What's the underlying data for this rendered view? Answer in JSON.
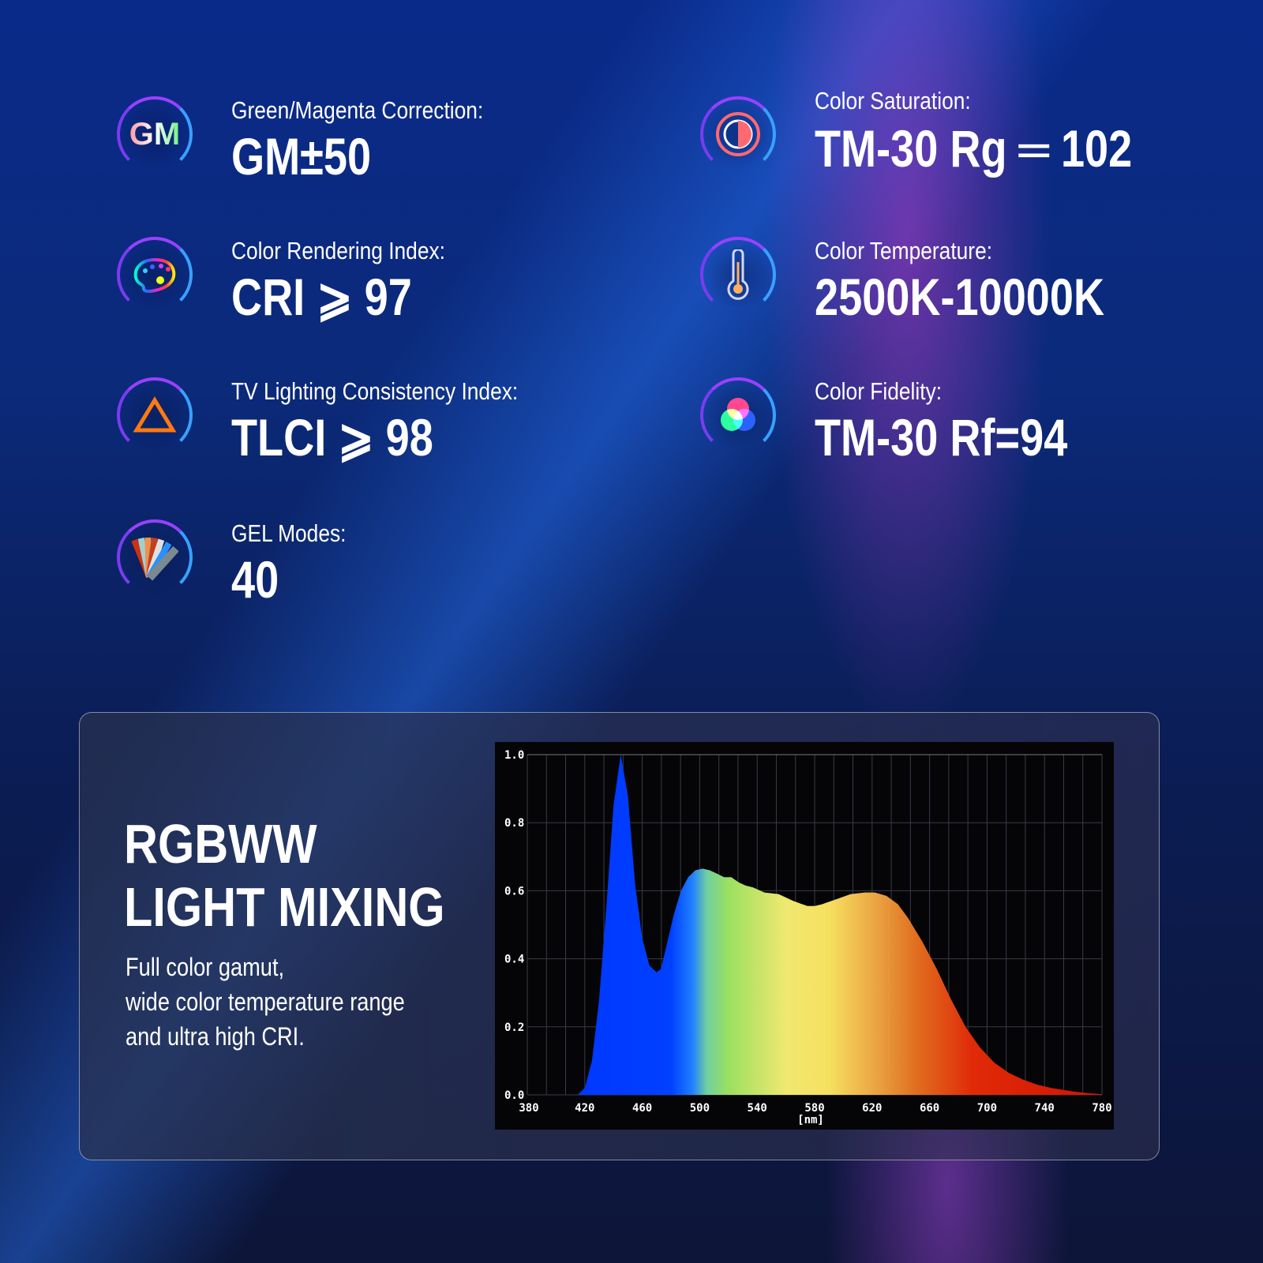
{
  "features": [
    {
      "icon": "gm-icon",
      "icon_text": "GM",
      "label": "Green/Magenta Correction:",
      "value": "GM±50"
    },
    {
      "icon": "palette-icon",
      "label": "Color Rendering Index:",
      "value": "CRI ⩾ 97"
    },
    {
      "icon": "triangle-icon",
      "label": "TV Lighting Consistency Index:",
      "value": "TLCI ⩾ 98"
    },
    {
      "icon": "gel-swatch-icon",
      "label": "GEL Modes:",
      "value": "40"
    },
    {
      "icon": "saturation-icon",
      "label": "Color Saturation:",
      "value": "TM-30 Rg ═ 102"
    },
    {
      "icon": "thermometer-icon",
      "label": "Color Temperature:",
      "value": "2500K-10000K"
    },
    {
      "icon": "rgb-circles-icon",
      "label": "Color Fidelity:",
      "value": "TM-30 Rf=94"
    }
  ],
  "panel": {
    "title_line1": "RGBWW",
    "title_line2": "LIGHT MIXING",
    "desc_line1": "Full color gamut,",
    "desc_line2": "wide color temperature range",
    "desc_line3": "and ultra high CRI."
  },
  "chart_data": {
    "type": "area",
    "xlabel": "[nm]",
    "xlim": [
      380,
      780
    ],
    "ylim": [
      0,
      1.0
    ],
    "xticks": [
      "380",
      "420",
      "460",
      "500",
      "540",
      "580",
      "620",
      "660",
      "700",
      "740",
      "780"
    ],
    "yticks": [
      "0.0",
      "0.2",
      "0.4",
      "0.6",
      "0.8",
      "1.0"
    ],
    "grid": true,
    "x": [
      380,
      415,
      420,
      425,
      430,
      435,
      440,
      445,
      450,
      455,
      460,
      465,
      470,
      473,
      477,
      482,
      487,
      492,
      497,
      502,
      507,
      512,
      517,
      522,
      527,
      532,
      537,
      545,
      555,
      565,
      575,
      580,
      585,
      595,
      605,
      615,
      622,
      630,
      638,
      645,
      655,
      665,
      675,
      685,
      695,
      705,
      715,
      725,
      735,
      745,
      760,
      770,
      780
    ],
    "y": [
      0,
      0,
      0.02,
      0.1,
      0.28,
      0.55,
      0.85,
      1.0,
      0.88,
      0.62,
      0.46,
      0.38,
      0.36,
      0.37,
      0.44,
      0.53,
      0.6,
      0.64,
      0.66,
      0.665,
      0.66,
      0.65,
      0.64,
      0.64,
      0.625,
      0.615,
      0.61,
      0.595,
      0.59,
      0.57,
      0.555,
      0.555,
      0.56,
      0.575,
      0.59,
      0.595,
      0.595,
      0.585,
      0.56,
      0.52,
      0.45,
      0.37,
      0.28,
      0.2,
      0.14,
      0.095,
      0.065,
      0.045,
      0.03,
      0.02,
      0.01,
      0.005,
      0.002
    ]
  },
  "colors": {
    "spectrum": [
      "#0033ff",
      "#0044ff",
      "#9be060",
      "#f6e56a",
      "#e98a30",
      "#e03010",
      "#d01a00"
    ]
  }
}
